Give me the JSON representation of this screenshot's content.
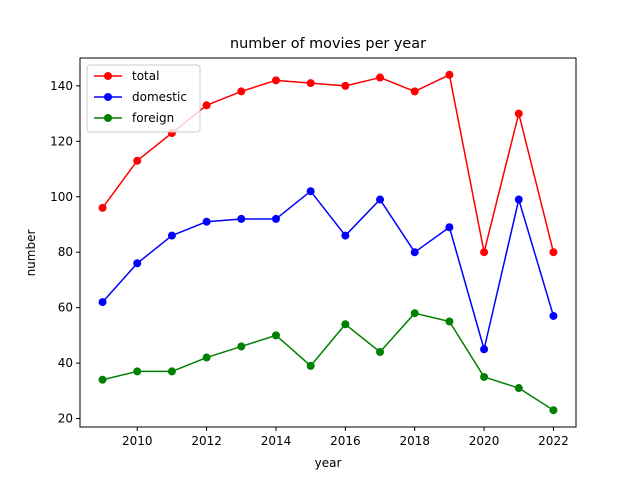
{
  "chart_data": {
    "type": "line",
    "title": "number of movies per year",
    "xlabel": "year",
    "ylabel": "number",
    "xlim": [
      2008.35,
      2022.65
    ],
    "ylim": [
      16.95,
      150.05
    ],
    "xticks": [
      2010,
      2012,
      2014,
      2016,
      2018,
      2020,
      2022
    ],
    "yticks": [
      20,
      40,
      60,
      80,
      100,
      120,
      140
    ],
    "grid": false,
    "legend_position": "top-left",
    "x": [
      2009,
      2010,
      2011,
      2012,
      2013,
      2014,
      2015,
      2016,
      2017,
      2018,
      2019,
      2020,
      2021,
      2022
    ],
    "series": [
      {
        "name": "total",
        "color": "#ff0000",
        "values": [
          96,
          113,
          123,
          133,
          138,
          142,
          141,
          140,
          143,
          138,
          144,
          80,
          130,
          80
        ]
      },
      {
        "name": "domestic",
        "color": "#0000ff",
        "values": [
          62,
          76,
          86,
          91,
          92,
          92,
          102,
          86,
          99,
          80,
          89,
          45,
          99,
          57
        ]
      },
      {
        "name": "foreign",
        "color": "#008000",
        "values": [
          34,
          37,
          37,
          42,
          46,
          50,
          39,
          54,
          44,
          58,
          55,
          35,
          31,
          23
        ]
      }
    ]
  }
}
